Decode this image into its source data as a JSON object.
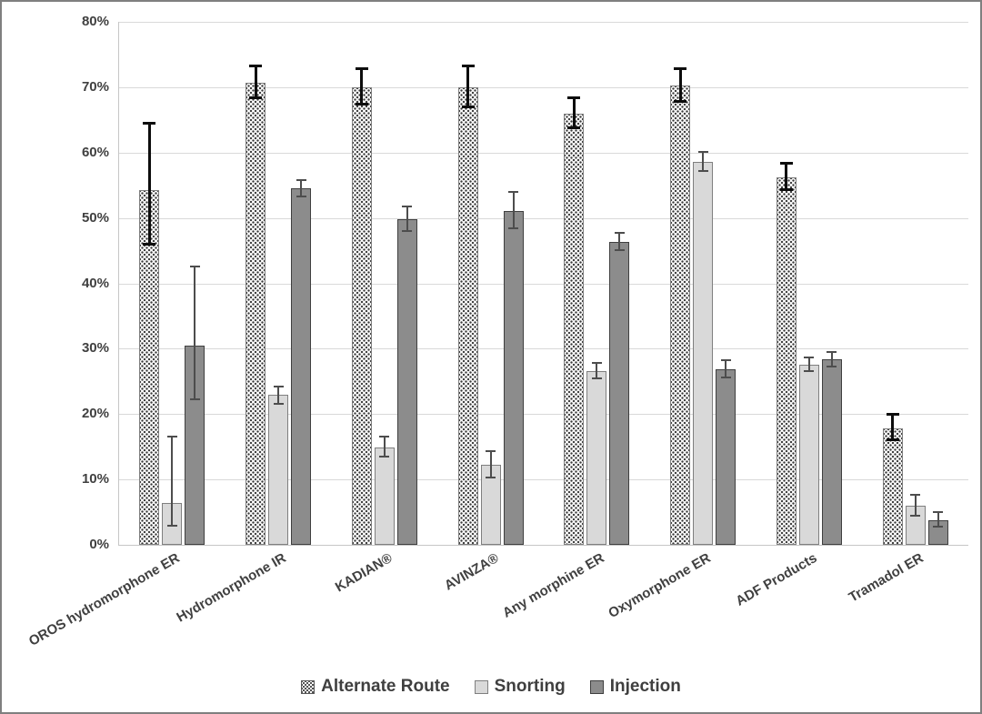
{
  "chart_data": {
    "type": "bar",
    "title": "",
    "xlabel": "",
    "ylabel": "",
    "ylim": [
      0,
      80
    ],
    "y_ticks": [
      "0%",
      "10%",
      "20%",
      "30%",
      "40%",
      "50%",
      "60%",
      "70%",
      "80%"
    ],
    "grid": true,
    "legend_position": "bottom-center",
    "error_bars": true,
    "categories": [
      "OROS hydromorphone ER",
      "Hydromorphone IR",
      "KADIAN®",
      "AVINZA®",
      "Any morphine ER",
      "Oxymorphone ER",
      "ADF Products",
      "Tramadol ER"
    ],
    "series": [
      {
        "name": "Alternate Route",
        "style": "dotted",
        "values": [
          54.3,
          70.7,
          70.0,
          70.0,
          66.0,
          70.2,
          56.2,
          17.8
        ],
        "ci_low": [
          45.8,
          68.2,
          67.2,
          66.8,
          63.6,
          67.6,
          54.1,
          15.8
        ],
        "ci_high": [
          64.7,
          73.4,
          73.0,
          73.4,
          68.6,
          73.0,
          58.6,
          20.2
        ]
      },
      {
        "name": "Snorting",
        "style": "light-gray",
        "values": [
          6.4,
          22.9,
          14.9,
          12.2,
          26.6,
          58.6,
          27.6,
          6.0
        ],
        "ci_low": [
          2.8,
          21.4,
          13.3,
          10.2,
          25.3,
          57.0,
          26.4,
          4.3
        ],
        "ci_high": [
          16.7,
          24.4,
          16.7,
          14.5,
          28.0,
          60.3,
          28.8,
          7.8
        ]
      },
      {
        "name": "Injection",
        "style": "dark-gray",
        "values": [
          30.5,
          54.5,
          49.8,
          51.0,
          46.3,
          26.9,
          28.4,
          3.8
        ],
        "ci_low": [
          22.1,
          53.1,
          47.8,
          48.3,
          45.0,
          25.5,
          27.2,
          2.7
        ],
        "ci_high": [
          42.7,
          55.9,
          51.9,
          54.1,
          47.8,
          28.4,
          29.7,
          5.2
        ]
      }
    ]
  },
  "colors": {
    "alternate_route_fill": "#ffffff",
    "alternate_route_dots": "#3a3a3a",
    "snorting_fill": "#d9d9d9",
    "injection_fill": "#8c8c8c",
    "bar_border_light": "#7f7f7f",
    "bar_border_dark": "#3f3f3f",
    "gridline": "#d9d9d9",
    "axis_line": "#c6c6c6",
    "text": "#404040",
    "error_bar_primary": "#0d0d0d",
    "error_bar_secondary": "#4d4d4d",
    "frame_border": "#7f7f7f",
    "background": "#ffffff"
  }
}
